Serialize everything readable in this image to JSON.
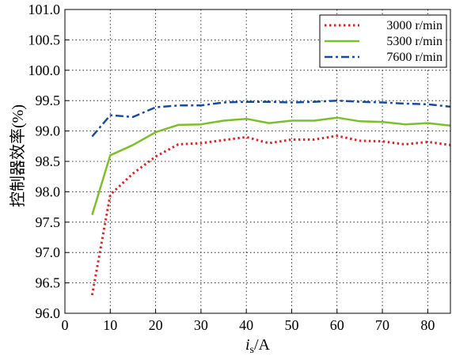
{
  "chart_data": {
    "type": "line",
    "xlabel": "i",
    "xlabel_sub": "s",
    "xlabel_unit": "/A",
    "ylabel": "控制器效率(%)",
    "xlim": [
      0,
      85
    ],
    "ylim": [
      96.0,
      101.0
    ],
    "xticks": [
      0,
      10,
      20,
      30,
      40,
      50,
      60,
      70,
      80
    ],
    "yticks": [
      96.0,
      96.5,
      97.0,
      97.5,
      98.0,
      98.5,
      99.0,
      99.5,
      100.0,
      100.5,
      101.0
    ],
    "grid": true,
    "legend_position": "top-right",
    "series": [
      {
        "name": "3000 r/min",
        "color": "#d9262b",
        "style": "dotted",
        "x": [
          6,
          10,
          15,
          20,
          25,
          30,
          35,
          40,
          45,
          50,
          55,
          60,
          65,
          70,
          75,
          80,
          85
        ],
        "y": [
          96.3,
          97.95,
          98.3,
          98.58,
          98.78,
          98.8,
          98.85,
          98.9,
          98.8,
          98.86,
          98.86,
          98.92,
          98.84,
          98.83,
          98.78,
          98.82,
          98.77
        ]
      },
      {
        "name": "5300 r/min",
        "color": "#7dbe2c",
        "style": "solid",
        "x": [
          6,
          10,
          15,
          20,
          25,
          30,
          35,
          40,
          45,
          50,
          55,
          60,
          65,
          70,
          75,
          80,
          85
        ],
        "y": [
          97.62,
          98.6,
          98.77,
          98.98,
          99.1,
          99.11,
          99.17,
          99.2,
          99.13,
          99.17,
          99.17,
          99.22,
          99.16,
          99.15,
          99.11,
          99.13,
          99.09
        ]
      },
      {
        "name": "7600 r/min",
        "color": "#1a4b9b",
        "style": "dashdot",
        "x": [
          6,
          10,
          15,
          20,
          25,
          30,
          35,
          40,
          45,
          50,
          55,
          60,
          65,
          70,
          75,
          80,
          85
        ],
        "y": [
          98.91,
          99.26,
          99.23,
          99.39,
          99.42,
          99.42,
          99.47,
          99.48,
          99.48,
          99.47,
          99.48,
          99.5,
          99.48,
          99.47,
          99.45,
          99.44,
          99.4
        ]
      }
    ]
  }
}
